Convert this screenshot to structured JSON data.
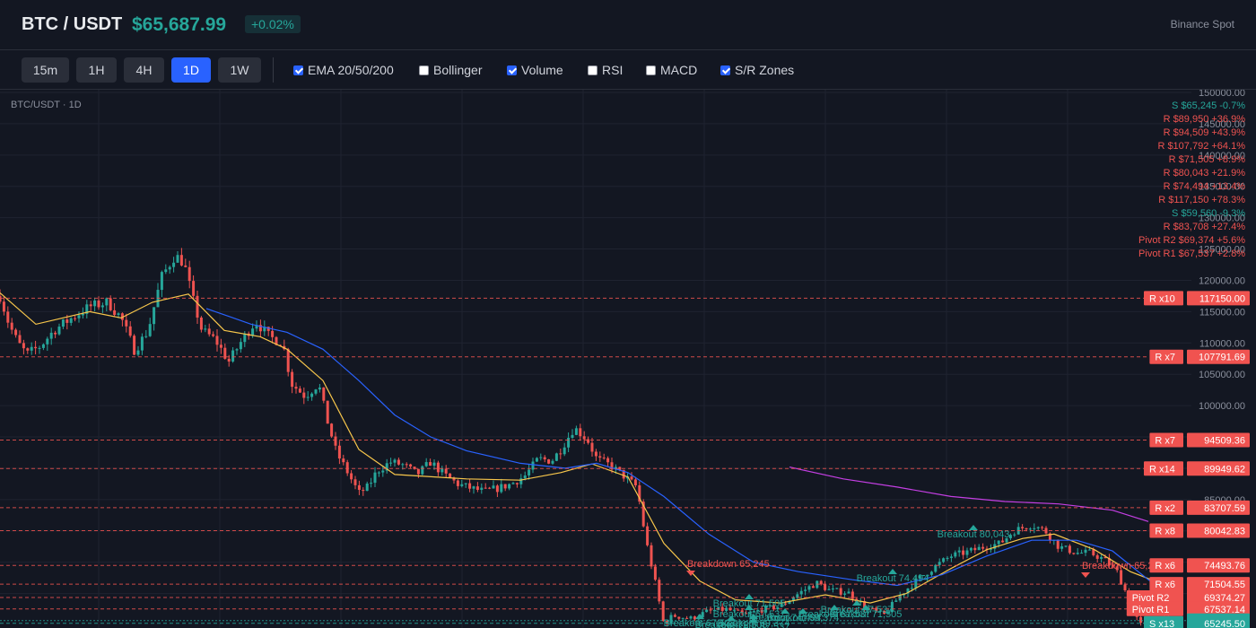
{
  "header": {
    "pair": "BTC / USDT",
    "price": "$65,687.99",
    "change": "+0.02%",
    "source": "Binance Spot"
  },
  "timeframes": [
    {
      "label": "15m",
      "active": false
    },
    {
      "label": "1H",
      "active": false
    },
    {
      "label": "4H",
      "active": false
    },
    {
      "label": "1D",
      "active": true
    },
    {
      "label": "1W",
      "active": false
    }
  ],
  "indicators": [
    {
      "label": "EMA 20/50/200",
      "checked": true
    },
    {
      "label": "Bollinger",
      "checked": false
    },
    {
      "label": "Volume",
      "checked": true
    },
    {
      "label": "RSI",
      "checked": false
    },
    {
      "label": "MACD",
      "checked": false
    },
    {
      "label": "S/R Zones",
      "checked": true
    }
  ],
  "colors": {
    "up": "#26a69a",
    "down": "#ef5350",
    "ema20": "#f7c64b",
    "ema50": "#2962ff",
    "ema200": "#c43fe3",
    "accent": "#2962ff"
  },
  "chart_data": {
    "type": "candlestick",
    "title": "BTC/USDT · 1D",
    "ylim": [
      65000,
      150000
    ],
    "yticks": [
      "150000.00",
      "145000.00",
      "140000.00",
      "135000.00",
      "130000.00",
      "125000.00",
      "120000.00",
      "115000.00",
      "110000.00",
      "105000.00",
      "100000.00",
      "95000.00",
      "90000.00",
      "85000.00",
      "80000.00",
      "75000.00",
      "70000.00"
    ],
    "price_path": [
      [
        0,
        117500
      ],
      [
        10,
        113000
      ],
      [
        20,
        110000
      ],
      [
        30,
        108200
      ],
      [
        45,
        109500
      ],
      [
        60,
        112000
      ],
      [
        80,
        114000
      ],
      [
        100,
        115800
      ],
      [
        120,
        116500
      ],
      [
        135,
        114000
      ],
      [
        150,
        108800
      ],
      [
        165,
        112000
      ],
      [
        180,
        120500
      ],
      [
        195,
        124000
      ],
      [
        205,
        122800
      ],
      [
        215,
        117000
      ],
      [
        225,
        112000
      ],
      [
        240,
        110500
      ],
      [
        255,
        107000
      ],
      [
        270,
        110500
      ],
      [
        285,
        113500
      ],
      [
        300,
        111000
      ],
      [
        315,
        110000
      ],
      [
        325,
        103500
      ],
      [
        340,
        101500
      ],
      [
        355,
        103500
      ],
      [
        365,
        97500
      ],
      [
        375,
        92500
      ],
      [
        385,
        90000
      ],
      [
        400,
        86000
      ],
      [
        410,
        87000
      ],
      [
        420,
        89500
      ],
      [
        435,
        91000
      ],
      [
        450,
        90500
      ],
      [
        465,
        89000
      ],
      [
        480,
        91000
      ],
      [
        495,
        89000
      ],
      [
        510,
        87500
      ],
      [
        525,
        86800
      ],
      [
        540,
        86300
      ],
      [
        555,
        86800
      ],
      [
        570,
        87500
      ],
      [
        585,
        88800
      ],
      [
        600,
        91500
      ],
      [
        615,
        91200
      ],
      [
        625,
        93000
      ],
      [
        640,
        96500
      ],
      [
        655,
        94500
      ],
      [
        665,
        91500
      ],
      [
        680,
        90500
      ],
      [
        695,
        88800
      ],
      [
        710,
        87000
      ],
      [
        720,
        78500
      ],
      [
        730,
        72000
      ],
      [
        740,
        65000
      ],
      [
        750,
        66500
      ],
      [
        770,
        66000
      ],
      [
        790,
        67200
      ],
      [
        810,
        67500
      ],
      [
        830,
        66500
      ],
      [
        850,
        67500
      ],
      [
        870,
        68000
      ],
      [
        890,
        70000
      ],
      [
        910,
        71700
      ],
      [
        925,
        70500
      ],
      [
        945,
        70200
      ],
      [
        965,
        67800
      ],
      [
        985,
        66500
      ],
      [
        1005,
        70000
      ],
      [
        1025,
        72500
      ],
      [
        1045,
        74600
      ],
      [
        1060,
        76000
      ],
      [
        1080,
        76700
      ],
      [
        1100,
        77600
      ],
      [
        1115,
        78000
      ],
      [
        1130,
        80000
      ],
      [
        1150,
        81000
      ],
      [
        1165,
        80000
      ],
      [
        1180,
        77500
      ],
      [
        1200,
        76500
      ],
      [
        1215,
        76500
      ],
      [
        1230,
        75500
      ],
      [
        1245,
        73500
      ],
      [
        1260,
        68500
      ],
      [
        1270,
        65000
      ],
      [
        1285,
        65000
      ],
      [
        1305,
        65688
      ]
    ],
    "ema20_path": [
      [
        0,
        118000
      ],
      [
        40,
        113000
      ],
      [
        100,
        115000
      ],
      [
        135,
        114000
      ],
      [
        170,
        116500
      ],
      [
        210,
        117800
      ],
      [
        250,
        112000
      ],
      [
        290,
        111000
      ],
      [
        320,
        109000
      ],
      [
        360,
        104000
      ],
      [
        400,
        93000
      ],
      [
        440,
        89000
      ],
      [
        520,
        88300
      ],
      [
        580,
        88100
      ],
      [
        625,
        89300
      ],
      [
        660,
        90700
      ],
      [
        700,
        88600
      ],
      [
        740,
        78000
      ],
      [
        780,
        72000
      ],
      [
        820,
        69000
      ],
      [
        870,
        68500
      ],
      [
        920,
        69800
      ],
      [
        970,
        68500
      ],
      [
        1010,
        70000
      ],
      [
        1060,
        74000
      ],
      [
        1100,
        77000
      ],
      [
        1140,
        78800
      ],
      [
        1175,
        79500
      ],
      [
        1220,
        77000
      ],
      [
        1260,
        73500
      ],
      [
        1305,
        71000
      ]
    ],
    "ema50_path": [
      [
        230,
        115500
      ],
      [
        280,
        113000
      ],
      [
        320,
        111700
      ],
      [
        360,
        109000
      ],
      [
        400,
        104000
      ],
      [
        440,
        98500
      ],
      [
        480,
        95000
      ],
      [
        520,
        92800
      ],
      [
        580,
        90800
      ],
      [
        630,
        90000
      ],
      [
        665,
        90800
      ],
      [
        700,
        89300
      ],
      [
        740,
        85500
      ],
      [
        790,
        79500
      ],
      [
        840,
        75000
      ],
      [
        890,
        73500
      ],
      [
        950,
        72200
      ],
      [
        1000,
        71300
      ],
      [
        1050,
        73000
      ],
      [
        1100,
        76000
      ],
      [
        1150,
        78500
      ],
      [
        1200,
        78500
      ],
      [
        1240,
        76800
      ],
      [
        1280,
        72200
      ],
      [
        1305,
        69500
      ]
    ],
    "ema200_path": [
      [
        880,
        90200
      ],
      [
        940,
        88300
      ],
      [
        1000,
        87000
      ],
      [
        1060,
        85500
      ],
      [
        1120,
        84700
      ],
      [
        1180,
        84300
      ],
      [
        1240,
        83300
      ],
      [
        1280,
        81500
      ]
    ],
    "resistance_zones": [
      {
        "tag": "R x10",
        "price": 117150
      },
      {
        "tag": "R x7",
        "price": 107791.69
      },
      {
        "tag": "R x7",
        "price": 94509.36
      },
      {
        "tag": "R x14",
        "price": 89949.62
      },
      {
        "tag": "R x2",
        "price": 83707.59
      },
      {
        "tag": "R x8",
        "price": 80042.83
      },
      {
        "tag": "R x6",
        "price": 74493.76
      },
      {
        "tag": "R x6",
        "price": 71504.55
      }
    ],
    "pivots": [
      {
        "tag": "Pivot R2",
        "price": 69374.27
      },
      {
        "tag": "Pivot R1",
        "price": 67537.14
      }
    ],
    "support": {
      "tag": "S x13",
      "price": 65245.5
    },
    "last_price": 65687.99,
    "zone_list": [
      {
        "text": "S $65,245 -0.7%",
        "kind": "support"
      },
      {
        "text": "R $89,950 +36.9%",
        "kind": "resistance"
      },
      {
        "text": "R $94,509 +43.9%",
        "kind": "resistance"
      },
      {
        "text": "R $107,792 +64.1%",
        "kind": "resistance"
      },
      {
        "text": "R $71,505 +8.9%",
        "kind": "resistance"
      },
      {
        "text": "R $80,043 +21.9%",
        "kind": "resistance"
      },
      {
        "text": "R $74,494 +13.4%",
        "kind": "resistance"
      },
      {
        "text": "R $117,150 +78.3%",
        "kind": "resistance"
      },
      {
        "text": "S $59,560 -9.3%",
        "kind": "support"
      },
      {
        "text": "R $83,708 +27.4%",
        "kind": "resistance"
      },
      {
        "text": "Pivot R2 $69,374 +5.6%",
        "kind": "resistance"
      },
      {
        "text": "Pivot R1 $67,537 +2.8%",
        "kind": "resistance"
      }
    ],
    "signals": [
      {
        "text": "Breakdown 65,245",
        "day": 770,
        "kind": "down"
      },
      {
        "text": "Breakdown 65,245",
        "day": 1210,
        "kind": "down"
      },
      {
        "text": "Breakout 74,494",
        "day": 875,
        "kind": "up"
      },
      {
        "text": "Breakout 71,505",
        "day": 835,
        "kind": "up"
      },
      {
        "text": "Breakout 69,374",
        "day": 840,
        "kind": "up"
      },
      {
        "text": "Breakout 71,505",
        "day": 815,
        "kind": "up"
      },
      {
        "text": "Breakout 69,374",
        "day": 895,
        "kind": "up"
      },
      {
        "text": "Breakout 67,537",
        "day": 840,
        "kind": "up"
      },
      {
        "text": "Breakout 67,537",
        "day": 835,
        "kind": "up"
      },
      {
        "text": "Breakout 67,537",
        "day": 780,
        "kind": "up"
      },
      {
        "text": "Breakout 67,537",
        "day": 930,
        "kind": "up"
      },
      {
        "text": "Breakout 67,537",
        "day": 955,
        "kind": "up"
      },
      {
        "text": "Breakout 71,505",
        "day": 965,
        "kind": "up"
      },
      {
        "text": "Breakout 74,494",
        "day": 995,
        "kind": "up"
      },
      {
        "text": "Breakout 80,043",
        "day": 1085,
        "kind": "up"
      }
    ]
  }
}
